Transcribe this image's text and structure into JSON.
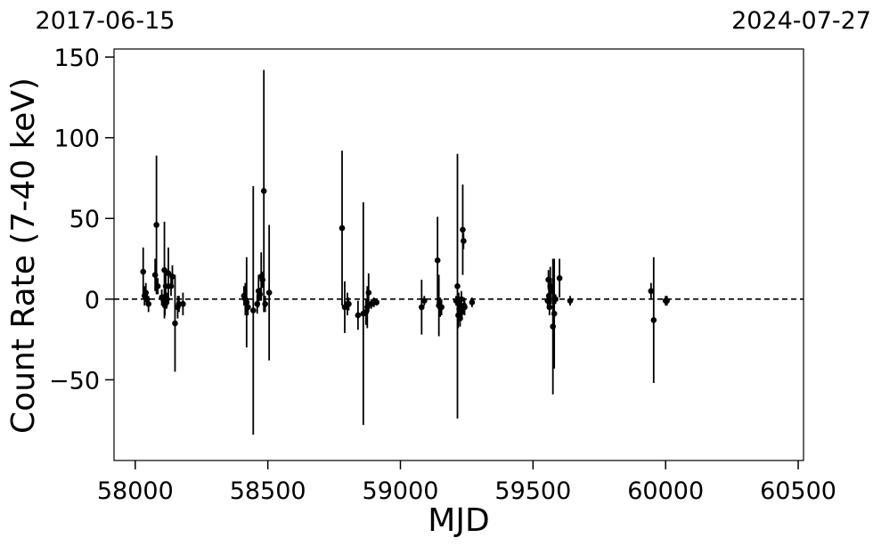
{
  "chart_data": {
    "type": "scatter",
    "title": "",
    "xlabel": "MJD",
    "ylabel": "Count Rate (7-40 keV)",
    "xlim": [
      57920,
      60520
    ],
    "ylim": [
      -100,
      155
    ],
    "xticks": [
      58000,
      58500,
      59000,
      59500,
      60000,
      60500
    ],
    "yticks": [
      150,
      100,
      50,
      0,
      -50
    ],
    "ytick_labels": [
      "150",
      "100",
      "50",
      "0",
      "−50"
    ],
    "top_axis_labels": {
      "left": "2017-06-15",
      "right": "2024-07-27"
    },
    "reference_line": {
      "y": 0,
      "style": "dashed"
    },
    "grid": false,
    "marker_color": "#000000",
    "series": [
      {
        "x": [
          58030,
          58035,
          58040,
          58045,
          58050,
          58075,
          58080,
          58085,
          58100,
          58105,
          58110,
          58112,
          58115,
          58118,
          58120,
          58125,
          58135,
          58140,
          58150,
          58160,
          58165,
          58180,
          58410,
          58415,
          58420,
          58425,
          58445,
          58460,
          58465,
          58470,
          58475,
          58480,
          58485,
          58490,
          58505,
          58780,
          58790,
          58800,
          58805,
          58840,
          58860,
          58870,
          58875,
          58880,
          58890,
          58900,
          58910,
          59080,
          59090,
          59140,
          59145,
          59150,
          59155,
          59210,
          59215,
          59218,
          59220,
          59222,
          59225,
          59228,
          59230,
          59232,
          59235,
          59238,
          59240,
          59242,
          59270,
          59555,
          59558,
          59560,
          59562,
          59565,
          59568,
          59575,
          59580,
          59585,
          59600,
          59640,
          59945,
          59955,
          60000,
          60005
        ],
        "y": [
          17,
          2,
          4,
          0,
          -3,
          15,
          46,
          8,
          1,
          0,
          18,
          -4,
          8,
          -2,
          0,
          16,
          8,
          14,
          -15,
          -5,
          -3,
          -3,
          2,
          0,
          -2,
          -5,
          -7,
          -3,
          5,
          3,
          14,
          12,
          67,
          -3,
          4,
          44,
          -5,
          -3,
          -3,
          -10,
          -9,
          -8,
          -5,
          4,
          -3,
          -2,
          -2,
          -5,
          -1,
          24,
          -4,
          -5,
          -5,
          -1,
          8,
          -10,
          -3,
          -6,
          -12,
          -5,
          0,
          -8,
          43,
          36,
          -4,
          -5,
          -2,
          -1,
          12,
          2,
          -5,
          8,
          5,
          -17,
          -9,
          0,
          13,
          -1,
          5,
          -13,
          -1,
          -1
        ],
        "yerr": [
          15,
          6,
          6,
          4,
          5,
          10,
          43,
          5,
          5,
          3,
          30,
          6,
          10,
          4,
          4,
          16,
          6,
          7,
          30,
          7,
          5,
          7,
          6,
          10,
          28,
          5,
          77,
          6,
          10,
          4,
          15,
          5,
          75,
          5,
          42,
          48,
          16,
          7,
          4,
          9,
          69,
          8,
          13,
          12,
          3,
          3,
          2,
          17,
          3,
          27,
          19,
          6,
          5,
          3,
          82,
          8,
          7,
          7,
          5,
          5,
          5,
          5,
          28,
          5,
          5,
          5,
          3,
          3,
          6,
          5,
          5,
          12,
          8,
          42,
          34,
          3,
          12,
          3,
          5,
          39,
          3,
          3
        ]
      }
    ]
  }
}
